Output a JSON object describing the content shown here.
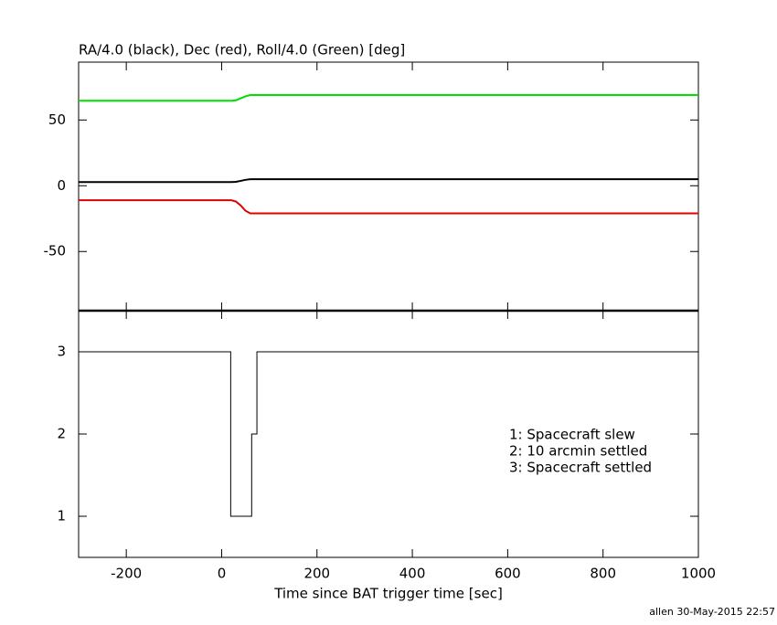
{
  "chart_data": [
    {
      "type": "line",
      "title": "RA/4.0 (black), Dec (red), Roll/4.0 (Green) [deg]",
      "x": [
        -300,
        20,
        30,
        40,
        50,
        60,
        70,
        365,
        1000
      ],
      "series": [
        {
          "name": "Roll/4.0",
          "color": "#00e000",
          "values": [
            64.6,
            64.6,
            65,
            66.5,
            68,
            69,
            69,
            69,
            69
          ]
        },
        {
          "name": "RA/4.0",
          "color": "#000000",
          "values": [
            2.8,
            2.8,
            3,
            3.7,
            4.5,
            5,
            5,
            5,
            5
          ]
        },
        {
          "name": "Dec",
          "color": "#e00000",
          "values": [
            -11,
            -11,
            -12,
            -15,
            -19,
            -21,
            -21,
            -21,
            -21
          ]
        }
      ],
      "xlim": [
        -300,
        1000
      ],
      "xticks": [
        -200,
        0,
        200,
        400,
        600,
        800,
        1000
      ],
      "ylim": [
        -95,
        94
      ],
      "yticks": [
        -50,
        0,
        50
      ]
    },
    {
      "type": "step",
      "x": [
        -300,
        19,
        63,
        74,
        1000
      ],
      "values": [
        3,
        1,
        2,
        3,
        3
      ],
      "color": "#000000",
      "xlim": [
        -300,
        1000
      ],
      "xticks": [
        -200,
        0,
        200,
        400,
        600,
        800,
        1000
      ],
      "ylim": [
        0.5,
        3.5
      ],
      "yticks": [
        1,
        2,
        3
      ],
      "xlabel": "Time since BAT trigger time [sec]",
      "annotations": [
        "1: Spacecraft slew",
        "2: 10 arcmin settled",
        "3: Spacecraft settled"
      ]
    }
  ],
  "footer": "allen 30-May-2015 22:57"
}
